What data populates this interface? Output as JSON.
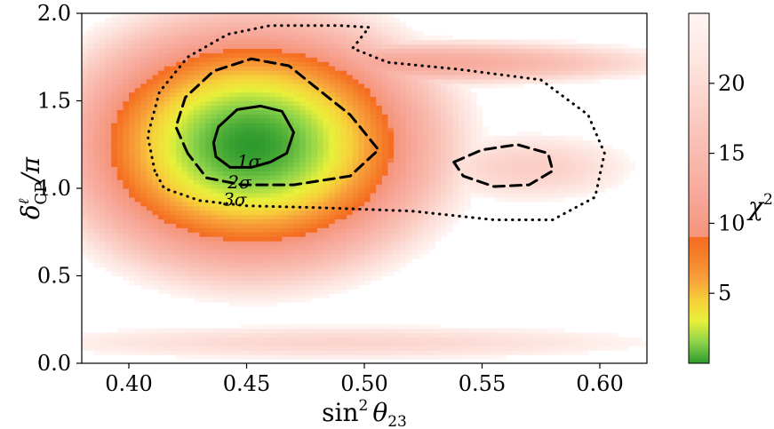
{
  "chart_data": {
    "type": "heatmap",
    "title": "",
    "xlabel": "sin² θ₂₃",
    "ylabel": "δ_CP^ℓ / π",
    "xlim": [
      0.38,
      0.62
    ],
    "ylim": [
      0.0,
      2.0
    ],
    "x_ticks": [
      0.4,
      0.45,
      0.5,
      0.55,
      0.6
    ],
    "x_tick_labels": [
      "0.40",
      "0.45",
      "0.50",
      "0.55",
      "0.60"
    ],
    "y_ticks": [
      0.0,
      0.5,
      1.0,
      1.5,
      2.0
    ],
    "y_tick_labels": [
      "0.0",
      "0.5",
      "1.0",
      "1.5",
      "2.0"
    ],
    "colorbar": {
      "label": "χ²",
      "range": [
        0,
        25
      ],
      "ticks": [
        5,
        10,
        15,
        20
      ],
      "tick_labels": [
        "5",
        "10",
        "15",
        "20"
      ],
      "stops": [
        {
          "value": 0,
          "color": "#2e9a2e"
        },
        {
          "value": 1.5,
          "color": "#8cd34a"
        },
        {
          "value": 3,
          "color": "#e8f03a"
        },
        {
          "value": 4.5,
          "color": "#f7d03a"
        },
        {
          "value": 6,
          "color": "#f7a03a"
        },
        {
          "value": 8,
          "color": "#f57a28"
        },
        {
          "value": 9,
          "color": "#f56a22"
        },
        {
          "value": 9.01,
          "color": "#f5947a"
        },
        {
          "value": 12,
          "color": "#f7a89a"
        },
        {
          "value": 17,
          "color": "#fac8be"
        },
        {
          "value": 21,
          "color": "#fde2dc"
        },
        {
          "value": 25,
          "color": "#fff6f4"
        }
      ]
    },
    "blobs": [
      {
        "name": "main-region",
        "cx": 0.452,
        "cy": 1.25,
        "sx": 0.06,
        "sy": 0.55,
        "peak": 0
      },
      {
        "name": "upper-band",
        "cx": 0.52,
        "cy": 1.72,
        "sx": 0.1,
        "sy": 0.12,
        "peak": 12
      },
      {
        "name": "right-tail",
        "cx": 0.57,
        "cy": 1.12,
        "sx": 0.05,
        "sy": 0.22,
        "peak": 18
      },
      {
        "name": "bottom-band",
        "cx": 0.49,
        "cy": 0.12,
        "sx": 0.16,
        "sy": 0.12,
        "peak": 19
      }
    ],
    "contours": [
      {
        "label": "1σ",
        "style": "solid",
        "points": [
          [
            0.443,
            1.12
          ],
          [
            0.437,
            1.18
          ],
          [
            0.436,
            1.26
          ],
          [
            0.438,
            1.35
          ],
          [
            0.446,
            1.45
          ],
          [
            0.456,
            1.47
          ],
          [
            0.465,
            1.44
          ],
          [
            0.47,
            1.32
          ],
          [
            0.467,
            1.2
          ],
          [
            0.46,
            1.15
          ],
          [
            0.452,
            1.12
          ],
          [
            0.443,
            1.12
          ]
        ],
        "label_pos": [
          0.446,
          1.12
        ]
      },
      {
        "label": "2σ",
        "style": "dashed",
        "points": [
          [
            0.425,
            1.2
          ],
          [
            0.42,
            1.35
          ],
          [
            0.424,
            1.52
          ],
          [
            0.436,
            1.67
          ],
          [
            0.452,
            1.74
          ],
          [
            0.468,
            1.7
          ],
          [
            0.48,
            1.57
          ],
          [
            0.494,
            1.42
          ],
          [
            0.506,
            1.22
          ],
          [
            0.494,
            1.07
          ],
          [
            0.47,
            1.02
          ],
          [
            0.448,
            1.02
          ],
          [
            0.433,
            1.06
          ],
          [
            0.425,
            1.2
          ]
        ],
        "label_pos": [
          0.442,
          1.0
        ]
      },
      {
        "label": "2σ-island",
        "style": "dashed",
        "points": [
          [
            0.538,
            1.15
          ],
          [
            0.55,
            1.22
          ],
          [
            0.565,
            1.25
          ],
          [
            0.578,
            1.2
          ],
          [
            0.58,
            1.1
          ],
          [
            0.57,
            1.02
          ],
          [
            0.555,
            1.01
          ],
          [
            0.542,
            1.07
          ],
          [
            0.538,
            1.15
          ]
        ],
        "label_pos": null
      },
      {
        "label": "3σ",
        "style": "dotted",
        "points": [
          [
            0.411,
            1.1
          ],
          [
            0.408,
            1.3
          ],
          [
            0.413,
            1.55
          ],
          [
            0.425,
            1.75
          ],
          [
            0.442,
            1.88
          ],
          [
            0.46,
            1.93
          ],
          [
            0.49,
            1.93
          ],
          [
            0.502,
            1.92
          ],
          [
            0.495,
            1.8
          ],
          [
            0.51,
            1.72
          ],
          [
            0.54,
            1.68
          ],
          [
            0.575,
            1.62
          ],
          [
            0.595,
            1.42
          ],
          [
            0.602,
            1.2
          ],
          [
            0.598,
            0.95
          ],
          [
            0.58,
            0.82
          ],
          [
            0.555,
            0.82
          ],
          [
            0.52,
            0.87
          ],
          [
            0.48,
            0.89
          ],
          [
            0.45,
            0.9
          ],
          [
            0.43,
            0.93
          ],
          [
            0.415,
            1.0
          ],
          [
            0.411,
            1.1
          ]
        ],
        "label_pos": [
          0.44,
          0.9
        ]
      }
    ]
  },
  "text": {
    "x_axis_label_main": "sin",
    "x_axis_label_sup": "2",
    "x_axis_label_theta": "θ",
    "x_axis_label_sub": "23",
    "y_axis_label_delta": "δ",
    "y_axis_label_sup": "ℓ",
    "y_axis_label_sub": "CP",
    "y_axis_label_rest": "/π",
    "colorbar_label": "χ",
    "colorbar_label_sup": "2",
    "sigma1": "1σ",
    "sigma2": "2σ",
    "sigma3": "3σ"
  }
}
